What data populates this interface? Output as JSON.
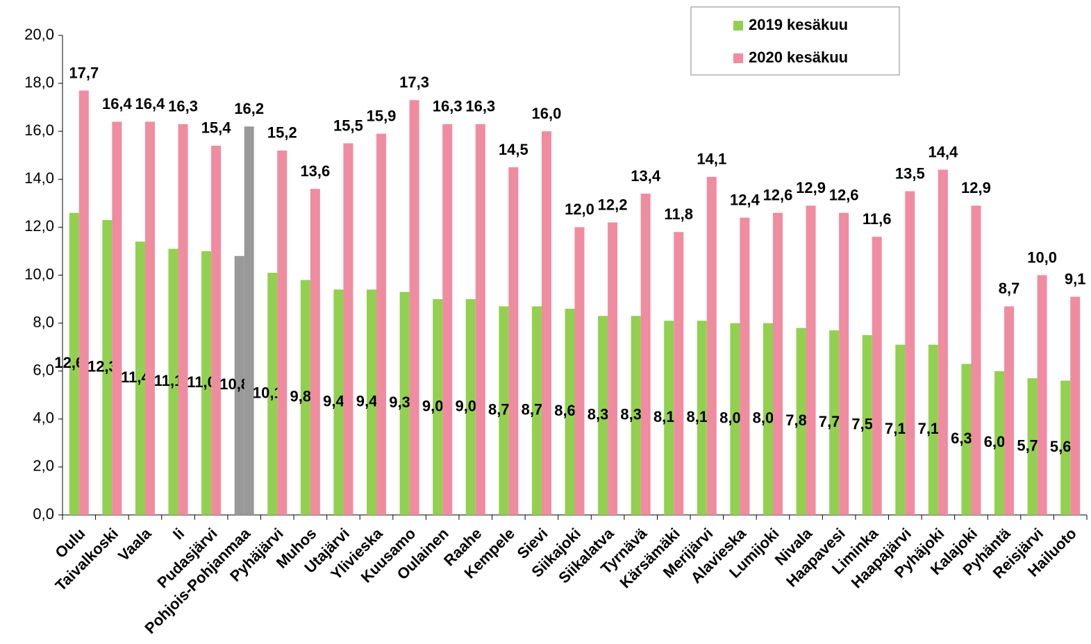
{
  "chart_data": {
    "type": "bar",
    "categories": [
      "Oulu",
      "Taivalkoski",
      "Vaala",
      "Ii",
      "Pudasjärvi",
      "Pohjois-Pohjanmaa",
      "Pyhäjärvi",
      "Muhos",
      "Utajärvi",
      "Ylivieska",
      "Kuusamo",
      "Oulainen",
      "Raahe",
      "Kempele",
      "Sievi",
      "Siikajoki",
      "Siikalatva",
      "Tyrnävä",
      "Kärsämäki",
      "Merijärvi",
      "Alavieska",
      "Lumijoki",
      "Nivala",
      "Haapavesi",
      "Liminka",
      "Haapajärvi",
      "Pyhäjoki",
      "Kalajoki",
      "Pyhäntä",
      "Reisjärvi",
      "Hailuoto"
    ],
    "series": [
      {
        "name": "2019 kesäkuu",
        "color": "#92d050",
        "colors": [
          "#92d050",
          "#92d050",
          "#92d050",
          "#92d050",
          "#92d050",
          "#999999",
          "#92d050",
          "#92d050",
          "#92d050",
          "#92d050",
          "#92d050",
          "#92d050",
          "#92d050",
          "#92d050",
          "#92d050",
          "#92d050",
          "#92d050",
          "#92d050",
          "#92d050",
          "#92d050",
          "#92d050",
          "#92d050",
          "#92d050",
          "#92d050",
          "#92d050",
          "#92d050",
          "#92d050",
          "#92d050",
          "#92d050",
          "#92d050",
          "#92d050"
        ],
        "values": [
          12.6,
          12.3,
          11.4,
          11.1,
          11.0,
          10.8,
          10.1,
          9.8,
          9.4,
          9.4,
          9.3,
          9.0,
          9.0,
          8.7,
          8.7,
          8.6,
          8.3,
          8.3,
          8.1,
          8.1,
          8.0,
          8.0,
          7.8,
          7.7,
          7.5,
          7.1,
          7.1,
          6.3,
          6.0,
          5.7,
          5.6
        ],
        "value_labels": [
          "12,6",
          "12,3",
          "11,4",
          "11,1",
          "11,0",
          "10,8",
          "10,1",
          "9,8",
          "9,4",
          "9,4",
          "9,3",
          "9,0",
          "9,0",
          "8,7",
          "8,7",
          "8,6",
          "8,3",
          "8,3",
          "8,1",
          "8,1",
          "8,0",
          "8,0",
          "7,8",
          "7,7",
          "7,5",
          "7,1",
          "7,1",
          "6,3",
          "6,0",
          "5,7",
          "5,6"
        ]
      },
      {
        "name": "2020 kesäkuu",
        "color": "#f08ca0",
        "colors": [
          "#f08ca0",
          "#f08ca0",
          "#f08ca0",
          "#f08ca0",
          "#f08ca0",
          "#999999",
          "#f08ca0",
          "#f08ca0",
          "#f08ca0",
          "#f08ca0",
          "#f08ca0",
          "#f08ca0",
          "#f08ca0",
          "#f08ca0",
          "#f08ca0",
          "#f08ca0",
          "#f08ca0",
          "#f08ca0",
          "#f08ca0",
          "#f08ca0",
          "#f08ca0",
          "#f08ca0",
          "#f08ca0",
          "#f08ca0",
          "#f08ca0",
          "#f08ca0",
          "#f08ca0",
          "#f08ca0",
          "#f08ca0",
          "#f08ca0",
          "#f08ca0"
        ],
        "values": [
          17.7,
          16.4,
          16.4,
          16.3,
          15.4,
          16.2,
          15.2,
          13.6,
          15.5,
          15.9,
          17.3,
          16.3,
          16.3,
          14.5,
          16.0,
          12.0,
          12.2,
          13.4,
          11.8,
          14.1,
          12.4,
          12.6,
          12.9,
          12.6,
          11.6,
          13.5,
          14.4,
          12.9,
          8.7,
          10.0,
          9.1
        ],
        "value_labels": [
          "17,7",
          "16,4",
          "16,4",
          "16,3",
          "15,4",
          "16,2",
          "15,2",
          "13,6",
          "15,5",
          "15,9",
          "17,3",
          "16,3",
          "16,3",
          "14,5",
          "16,0",
          "12,0",
          "12,2",
          "13,4",
          "11,8",
          "14,1",
          "12,4",
          "12,6",
          "12,9",
          "12,6",
          "11,6",
          "13,5",
          "14,4",
          "12,9",
          "8,7",
          "10,0",
          "9,1"
        ]
      }
    ],
    "ylim": [
      0,
      20
    ],
    "yticks": [
      {
        "value": 0,
        "label": "0,0"
      },
      {
        "value": 2,
        "label": "2,0"
      },
      {
        "value": 4,
        "label": "4,0"
      },
      {
        "value": 6,
        "label": "6,0"
      },
      {
        "value": 8,
        "label": "8,0"
      },
      {
        "value": 10,
        "label": "10,0"
      },
      {
        "value": 12,
        "label": "12,0"
      },
      {
        "value": 14,
        "label": "14,0"
      },
      {
        "value": 16,
        "label": "16,0"
      },
      {
        "value": 18,
        "label": "18,0"
      },
      {
        "value": 20,
        "label": "20,0"
      }
    ],
    "grid": false,
    "legend": "top-right"
  }
}
